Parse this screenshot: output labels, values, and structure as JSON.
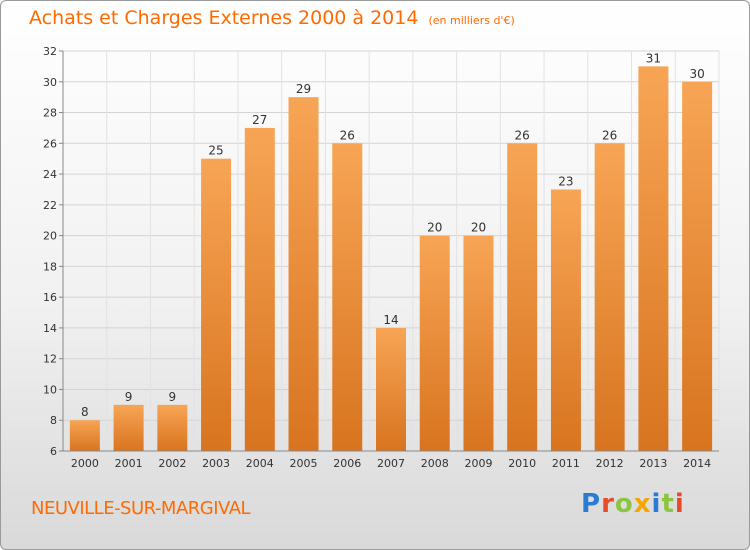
{
  "title": "Achats et Charges Externes 2000 à 2014",
  "unit": "(en milliers d'€)",
  "place": "NEUVILLE-SUR-MARGIVAL",
  "logo": {
    "text": "Proxiti",
    "colors": [
      "#2b7bd3",
      "#e84b2a",
      "#8cc63f",
      "#f7a600",
      "#2b7bd3",
      "#8cc63f",
      "#e84b2a"
    ]
  },
  "colors": {
    "bar_light": "#f7a555",
    "bar_dark": "#d8741f",
    "title": "#ff6a00"
  },
  "chart_data": {
    "type": "bar",
    "categories": [
      "2000",
      "2001",
      "2002",
      "2003",
      "2004",
      "2005",
      "2006",
      "2007",
      "2008",
      "2009",
      "2010",
      "2011",
      "2012",
      "2013",
      "2014"
    ],
    "values": [
      8,
      9,
      9,
      25,
      27,
      29,
      26,
      14,
      20,
      20,
      26,
      23,
      26,
      31,
      30
    ],
    "ylim": [
      6,
      32
    ],
    "yticks": [
      6,
      8,
      10,
      12,
      14,
      16,
      18,
      20,
      22,
      24,
      26,
      28,
      30,
      32
    ],
    "grid": true,
    "data_labels": true
  }
}
